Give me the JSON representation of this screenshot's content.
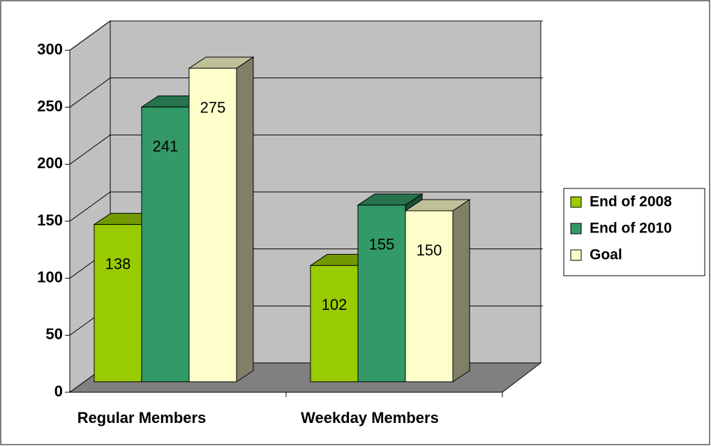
{
  "chart_data": {
    "type": "bar3d",
    "categories": [
      "Regular Members",
      "Weekday Members"
    ],
    "series": [
      {
        "name": "End of 2008",
        "color": "#99cc00",
        "values": [
          138,
          102
        ]
      },
      {
        "name": "End of 2010",
        "color": "#339966",
        "values": [
          241,
          155
        ]
      },
      {
        "name": "Goal",
        "color": "#ffffcc",
        "values": [
          275,
          150
        ]
      }
    ],
    "ylim": [
      0,
      300
    ],
    "yticks": [
      0,
      50,
      100,
      150,
      200,
      250,
      300
    ],
    "grid": true,
    "legend": "right"
  }
}
